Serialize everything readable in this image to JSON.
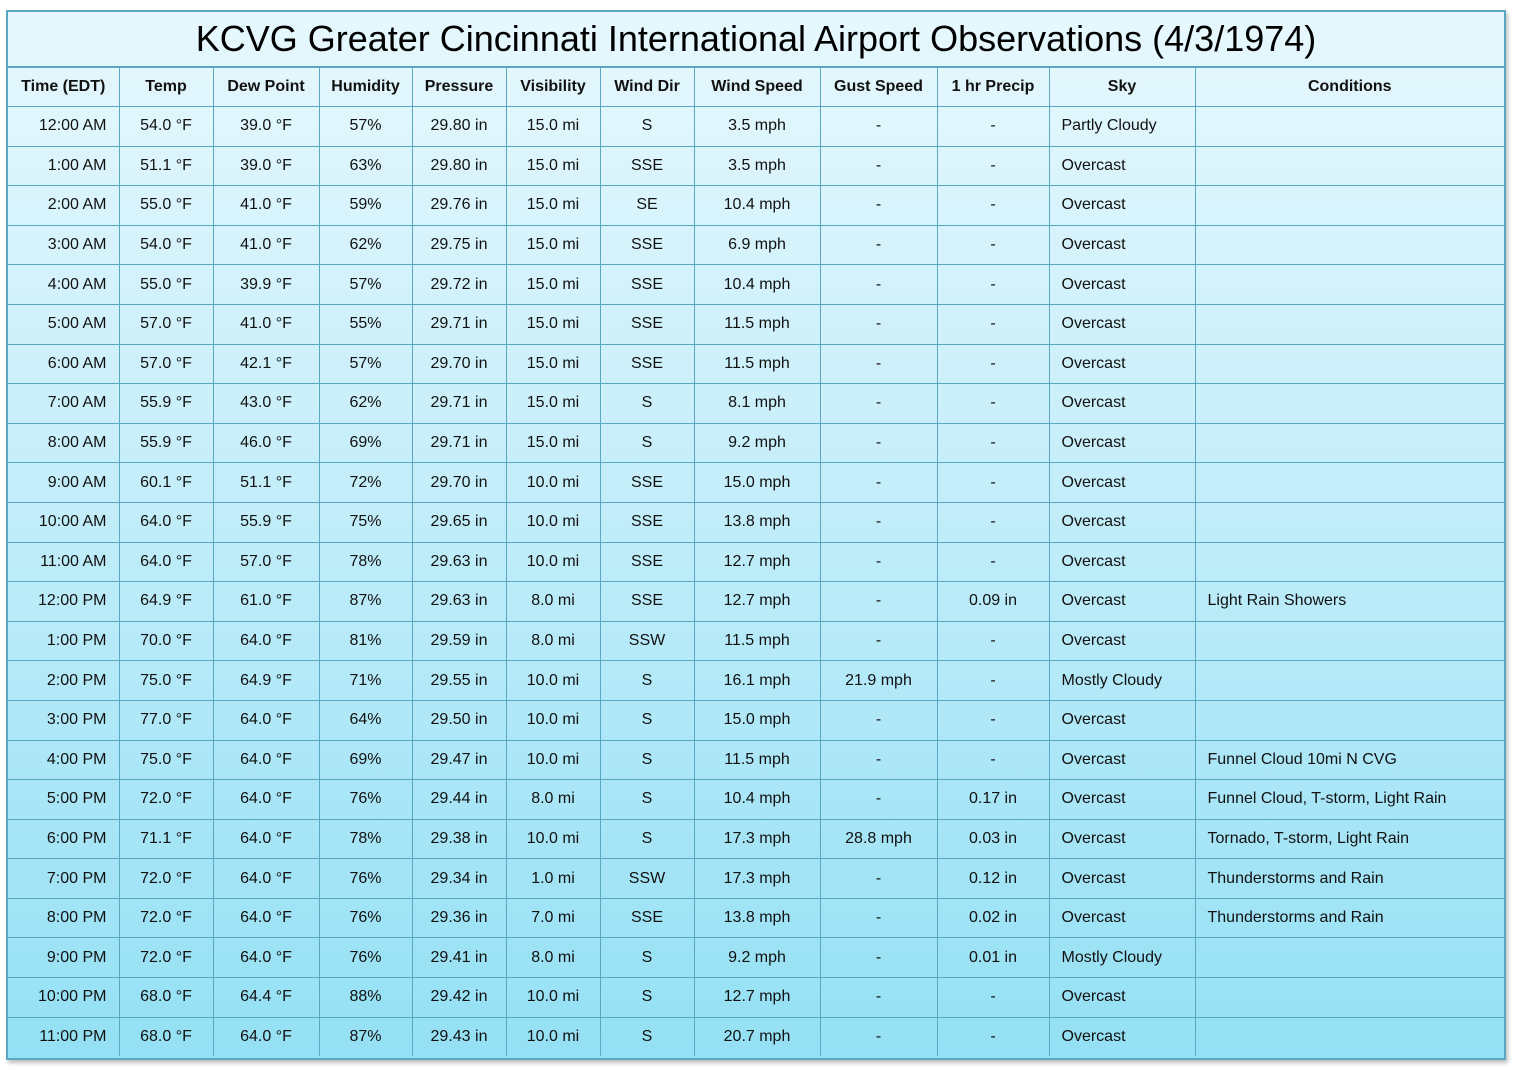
{
  "title": "KCVG Greater Cincinnati International Airport Observations (4/3/1974)",
  "columns": [
    "Time (EDT)",
    "Temp",
    "Dew Point",
    "Humidity",
    "Pressure",
    "Visibility",
    "Wind Dir",
    "Wind Speed",
    "Gust Speed",
    "1 hr Precip",
    "Sky",
    "Conditions"
  ],
  "rows": [
    [
      "12:00 AM",
      "54.0 °F",
      "39.0 °F",
      "57%",
      "29.80 in",
      "15.0 mi",
      "S",
      "3.5 mph",
      "-",
      "-",
      "Partly Cloudy",
      ""
    ],
    [
      "1:00 AM",
      "51.1 °F",
      "39.0 °F",
      "63%",
      "29.80 in",
      "15.0 mi",
      "SSE",
      "3.5 mph",
      "-",
      "-",
      "Overcast",
      ""
    ],
    [
      "2:00 AM",
      "55.0 °F",
      "41.0 °F",
      "59%",
      "29.76 in",
      "15.0 mi",
      "SE",
      "10.4 mph",
      "-",
      "-",
      "Overcast",
      ""
    ],
    [
      "3:00 AM",
      "54.0 °F",
      "41.0 °F",
      "62%",
      "29.75 in",
      "15.0 mi",
      "SSE",
      "6.9 mph",
      "-",
      "-",
      "Overcast",
      ""
    ],
    [
      "4:00 AM",
      "55.0 °F",
      "39.9 °F",
      "57%",
      "29.72 in",
      "15.0 mi",
      "SSE",
      "10.4 mph",
      "-",
      "-",
      "Overcast",
      ""
    ],
    [
      "5:00 AM",
      "57.0 °F",
      "41.0 °F",
      "55%",
      "29.71 in",
      "15.0 mi",
      "SSE",
      "11.5 mph",
      "-",
      "-",
      "Overcast",
      ""
    ],
    [
      "6:00 AM",
      "57.0 °F",
      "42.1 °F",
      "57%",
      "29.70 in",
      "15.0 mi",
      "SSE",
      "11.5 mph",
      "-",
      "-",
      "Overcast",
      ""
    ],
    [
      "7:00 AM",
      "55.9 °F",
      "43.0 °F",
      "62%",
      "29.71 in",
      "15.0 mi",
      "S",
      "8.1 mph",
      "-",
      "-",
      "Overcast",
      ""
    ],
    [
      "8:00 AM",
      "55.9 °F",
      "46.0 °F",
      "69%",
      "29.71 in",
      "15.0 mi",
      "S",
      "9.2 mph",
      "-",
      "-",
      "Overcast",
      ""
    ],
    [
      "9:00 AM",
      "60.1 °F",
      "51.1 °F",
      "72%",
      "29.70 in",
      "10.0 mi",
      "SSE",
      "15.0 mph",
      "-",
      "-",
      "Overcast",
      ""
    ],
    [
      "10:00 AM",
      "64.0 °F",
      "55.9 °F",
      "75%",
      "29.65 in",
      "10.0 mi",
      "SSE",
      "13.8 mph",
      "-",
      "-",
      "Overcast",
      ""
    ],
    [
      "11:00 AM",
      "64.0 °F",
      "57.0 °F",
      "78%",
      "29.63 in",
      "10.0 mi",
      "SSE",
      "12.7 mph",
      "-",
      "-",
      "Overcast",
      ""
    ],
    [
      "12:00 PM",
      "64.9 °F",
      "61.0 °F",
      "87%",
      "29.63 in",
      "8.0 mi",
      "SSE",
      "12.7 mph",
      "-",
      "0.09 in",
      "Overcast",
      "Light Rain Showers"
    ],
    [
      "1:00 PM",
      "70.0 °F",
      "64.0 °F",
      "81%",
      "29.59 in",
      "8.0 mi",
      "SSW",
      "11.5 mph",
      "-",
      "-",
      "Overcast",
      ""
    ],
    [
      "2:00 PM",
      "75.0 °F",
      "64.9 °F",
      "71%",
      "29.55 in",
      "10.0 mi",
      "S",
      "16.1 mph",
      "21.9 mph",
      "-",
      "Mostly Cloudy",
      ""
    ],
    [
      "3:00 PM",
      "77.0 °F",
      "64.0 °F",
      "64%",
      "29.50 in",
      "10.0 mi",
      "S",
      "15.0 mph",
      "-",
      "-",
      "Overcast",
      ""
    ],
    [
      "4:00 PM",
      "75.0 °F",
      "64.0 °F",
      "69%",
      "29.47 in",
      "10.0 mi",
      "S",
      "11.5 mph",
      "-",
      "-",
      "Overcast",
      "Funnel Cloud 10mi N CVG"
    ],
    [
      "5:00 PM",
      "72.0 °F",
      "64.0 °F",
      "76%",
      "29.44 in",
      "8.0 mi",
      "S",
      "10.4 mph",
      "-",
      "0.17 in",
      "Overcast",
      "Funnel Cloud, T-storm, Light Rain"
    ],
    [
      "6:00 PM",
      "71.1 °F",
      "64.0 °F",
      "78%",
      "29.38 in",
      "10.0 mi",
      "S",
      "17.3 mph",
      "28.8 mph",
      "0.03 in",
      "Overcast",
      "Tornado, T-storm, Light Rain"
    ],
    [
      "7:00 PM",
      "72.0 °F",
      "64.0 °F",
      "76%",
      "29.34 in",
      "1.0 mi",
      "SSW",
      "17.3 mph",
      "-",
      "0.12 in",
      "Overcast",
      "Thunderstorms and Rain"
    ],
    [
      "8:00 PM",
      "72.0 °F",
      "64.0 °F",
      "76%",
      "29.36 in",
      "7.0 mi",
      "SSE",
      "13.8 mph",
      "-",
      "0.02 in",
      "Overcast",
      "Thunderstorms and Rain"
    ],
    [
      "9:00 PM",
      "72.0 °F",
      "64.0 °F",
      "76%",
      "29.41 in",
      "8.0 mi",
      "S",
      "9.2 mph",
      "-",
      "0.01 in",
      "Mostly Cloudy",
      ""
    ],
    [
      "10:00 PM",
      "68.0 °F",
      "64.4 °F",
      "88%",
      "29.42 in",
      "10.0 mi",
      "S",
      "12.7 mph",
      "-",
      "-",
      "Overcast",
      ""
    ],
    [
      "11:00 PM",
      "68.0 °F",
      "64.0 °F",
      "87%",
      "29.43 in",
      "10.0 mi",
      "S",
      "20.7 mph",
      "-",
      "-",
      "Overcast",
      ""
    ]
  ]
}
